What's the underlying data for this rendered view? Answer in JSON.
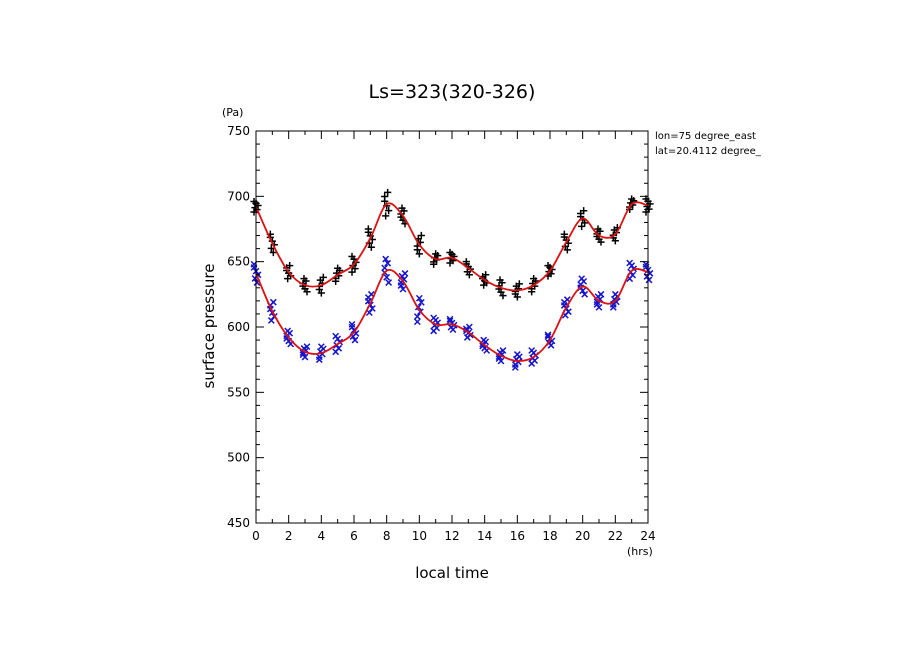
{
  "chart_data": {
    "type": "scatter",
    "title": "Ls=323(320-326)",
    "xlabel": "local time",
    "ylabel": "surface pressure",
    "xunit": "(hrs)",
    "yunit": "(Pa)",
    "xlim": [
      0,
      24
    ],
    "ylim": [
      450,
      750
    ],
    "xticks": [
      0,
      2,
      4,
      6,
      8,
      10,
      12,
      14,
      16,
      18,
      20,
      22,
      24
    ],
    "yticks": [
      450,
      500,
      550,
      600,
      650,
      700,
      750
    ],
    "grid": false,
    "annotations": [
      "lon=75 degree_east",
      "lat=20.4112 degree_"
    ],
    "x": [
      0,
      1,
      2,
      3,
      4,
      5,
      6,
      7,
      8,
      9,
      10,
      11,
      12,
      13,
      14,
      15,
      16,
      17,
      18,
      19,
      20,
      21,
      22,
      23,
      24
    ],
    "series": [
      {
        "marker": "+",
        "color": "#000000",
        "mean": [
          692,
          664,
          642,
          632,
          632,
          640,
          648,
          668,
          694,
          685,
          663,
          652,
          653,
          645,
          636,
          630,
          628,
          632,
          643,
          665,
          683,
          670,
          671,
          694,
          693
        ],
        "spread": [
          4,
          7,
          5,
          5,
          6,
          5,
          6,
          7,
          9,
          6,
          7,
          4,
          4,
          5,
          4,
          6,
          5,
          5,
          4,
          6,
          6,
          5,
          5,
          4,
          5
        ]
      },
      {
        "marker": "x",
        "color": "#1414cc",
        "mean": [
          641,
          612,
          592,
          581,
          580,
          587,
          596,
          618,
          643,
          635,
          613,
          602,
          602,
          596,
          586,
          578,
          574,
          577,
          590,
          615,
          631,
          620,
          620,
          643,
          642
        ],
        "spread": [
          7,
          7,
          5,
          4,
          5,
          6,
          6,
          7,
          9,
          6,
          9,
          5,
          4,
          4,
          4,
          4,
          5,
          5,
          4,
          6,
          6,
          5,
          5,
          6,
          6
        ]
      }
    ],
    "fit_color": "#dd1111"
  }
}
